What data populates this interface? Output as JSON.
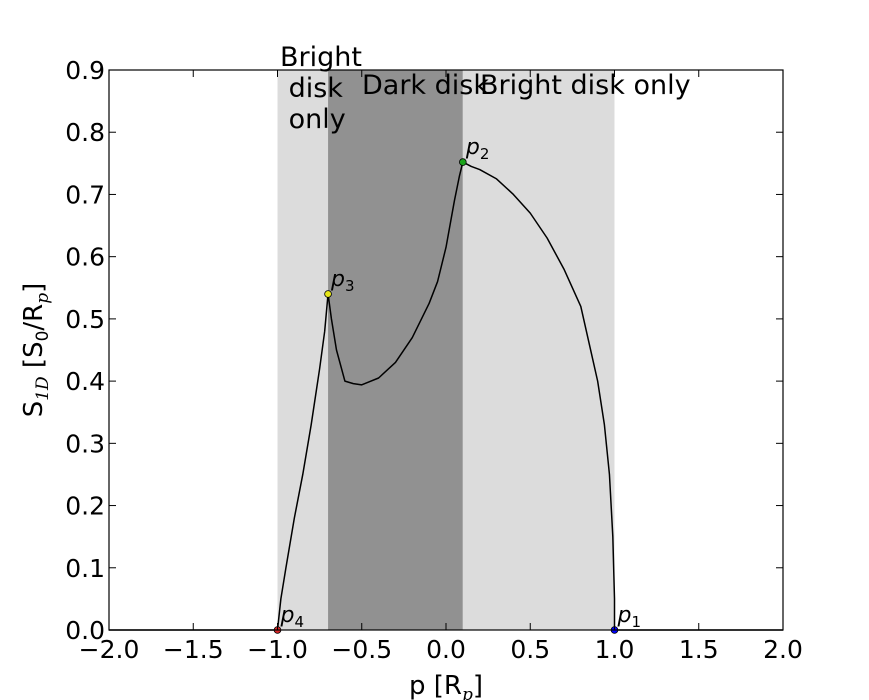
{
  "chart_data": {
    "type": "line",
    "title": "",
    "xlabel": "p  [R",
    "xlabel_sub": "p",
    "xlabel_close": "]",
    "ylabel": "S",
    "ylabel_sub": "1D",
    "ylabel_mid": "  [S",
    "ylabel_sub2": "0",
    "ylabel_mid2": "/R",
    "ylabel_sub3": "p",
    "ylabel_close": "]",
    "xlim": [
      -2.0,
      2.0
    ],
    "ylim": [
      0.0,
      0.9
    ],
    "xticks": [
      "−2.0",
      "−1.5",
      "−1.0",
      "−0.5",
      "0.0",
      "0.5",
      "1.0",
      "1.5",
      "2.0"
    ],
    "xtick_values": [
      -2.0,
      -1.5,
      -1.0,
      -0.5,
      0.0,
      0.5,
      1.0,
      1.5,
      2.0
    ],
    "yticks": [
      "0.0",
      "0.1",
      "0.2",
      "0.3",
      "0.4",
      "0.5",
      "0.6",
      "0.7",
      "0.8",
      "0.9"
    ],
    "ytick_values": [
      0.0,
      0.1,
      0.2,
      0.3,
      0.4,
      0.5,
      0.6,
      0.7,
      0.8,
      0.9
    ],
    "grid": false,
    "regions": [
      {
        "label_lines": [
          "Bright",
          " disk",
          " only"
        ],
        "x0": -1.0,
        "x1": -0.7,
        "color": "#dcdcdc"
      },
      {
        "label_lines": [
          "Dark disk"
        ],
        "x0": -0.7,
        "x1": 0.1,
        "color": "#919191"
      },
      {
        "label_lines": [
          "Bright disk only"
        ],
        "x0": 0.1,
        "x1": 1.0,
        "color": "#dcdcdc"
      }
    ],
    "series": [
      {
        "color": "#000000",
        "x": [
          2.0,
          1.0,
          1.0,
          0.99,
          0.97,
          0.94,
          0.9,
          0.85,
          0.8,
          0.7,
          0.6,
          0.5,
          0.4,
          0.3,
          0.2,
          0.15,
          0.1,
          0.08,
          0.05,
          0.0,
          -0.05,
          -0.1,
          -0.2,
          -0.3,
          -0.4,
          -0.5,
          -0.55,
          -0.6,
          -0.65,
          -0.68,
          -0.7,
          -0.72,
          -0.75,
          -0.8,
          -0.85,
          -0.9,
          -0.95,
          -0.98,
          -1.0,
          -1.0,
          -2.0
        ],
        "y": [
          0.0,
          0.0,
          0.05,
          0.15,
          0.25,
          0.33,
          0.4,
          0.46,
          0.52,
          0.58,
          0.63,
          0.67,
          0.7,
          0.725,
          0.74,
          0.745,
          0.752,
          0.73,
          0.69,
          0.615,
          0.56,
          0.525,
          0.47,
          0.43,
          0.405,
          0.394,
          0.396,
          0.4,
          0.45,
          0.5,
          0.54,
          0.48,
          0.42,
          0.33,
          0.25,
          0.18,
          0.1,
          0.05,
          0.0,
          0.0,
          0.0
        ]
      }
    ],
    "points": [
      {
        "label": "p",
        "sub": "1",
        "x": 1.0,
        "y": 0.0,
        "color": "#0000ff"
      },
      {
        "label": "p",
        "sub": "2",
        "x": 0.1,
        "y": 0.752,
        "color": "#1aa31a"
      },
      {
        "label": "p",
        "sub": "3",
        "x": -0.7,
        "y": 0.54,
        "color": "#e6e619"
      },
      {
        "label": "p",
        "sub": "4",
        "x": -1.0,
        "y": 0.0,
        "color": "#d62728"
      }
    ]
  }
}
